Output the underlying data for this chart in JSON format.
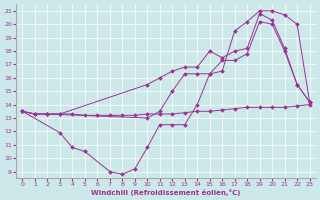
{
  "xlabel": "Windchill (Refroidissement éolien,°C)",
  "xlim": [
    -0.5,
    23.5
  ],
  "ylim": [
    8.5,
    21.5
  ],
  "yticks": [
    9,
    10,
    11,
    12,
    13,
    14,
    15,
    16,
    17,
    18,
    19,
    20,
    21
  ],
  "xticks": [
    0,
    1,
    2,
    3,
    4,
    5,
    6,
    7,
    8,
    9,
    10,
    11,
    12,
    13,
    14,
    15,
    16,
    17,
    18,
    19,
    20,
    21,
    22,
    23
  ],
  "bg_color": "#cce8e8",
  "line_color": "#993399",
  "series": [
    {
      "x": [
        0,
        1,
        2,
        3,
        4,
        5,
        6,
        7,
        8,
        9,
        10,
        11,
        12,
        13,
        14,
        15,
        16,
        17,
        18,
        19,
        20,
        21,
        22,
        23
      ],
      "y": [
        13.5,
        13.3,
        13.3,
        13.3,
        13.3,
        13.2,
        13.2,
        13.2,
        13.2,
        13.2,
        13.3,
        13.3,
        13.3,
        13.4,
        13.5,
        13.5,
        13.6,
        13.7,
        13.8,
        13.8,
        13.8,
        13.8,
        13.9,
        14.0
      ]
    },
    {
      "x": [
        0,
        3,
        4,
        5,
        7,
        8,
        9,
        10,
        11,
        12,
        13,
        14,
        15,
        16,
        17,
        18,
        19,
        20,
        21,
        22,
        23
      ],
      "y": [
        13.5,
        11.9,
        10.8,
        10.5,
        9.0,
        8.8,
        9.2,
        10.8,
        12.5,
        12.5,
        12.5,
        14.0,
        16.3,
        16.5,
        19.5,
        20.2,
        21.0,
        21.0,
        20.7,
        20.0,
        14.2
      ]
    },
    {
      "x": [
        0,
        1,
        2,
        3,
        10,
        11,
        12,
        13,
        14,
        15,
        16,
        17,
        18,
        19,
        20,
        21,
        22,
        23
      ],
      "y": [
        13.5,
        13.3,
        13.3,
        13.3,
        15.5,
        16.0,
        16.5,
        16.8,
        16.8,
        18.0,
        17.5,
        18.0,
        18.2,
        20.8,
        20.3,
        18.2,
        15.5,
        14.2
      ]
    },
    {
      "x": [
        0,
        1,
        2,
        10,
        11,
        12,
        13,
        14,
        15,
        16,
        17,
        18,
        19,
        20,
        21,
        22,
        23
      ],
      "y": [
        13.5,
        13.3,
        13.3,
        13.0,
        13.5,
        15.0,
        16.3,
        16.3,
        16.3,
        17.3,
        17.3,
        17.8,
        20.2,
        20.0,
        18.0,
        15.5,
        14.2
      ]
    }
  ]
}
